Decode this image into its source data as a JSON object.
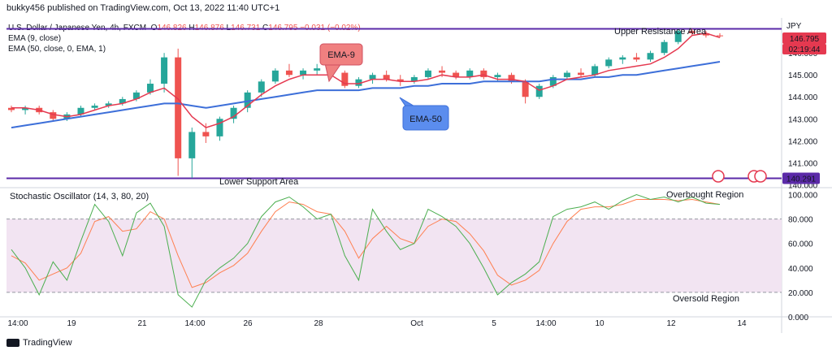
{
  "header": {
    "published": "bukky456 published on TradingView.com, Oct 13, 2022 11:40 UTC+1",
    "symbol": "U.S. Dollar / Japanese Yen, 4h, FXCM",
    "o_label": "O",
    "o_val": "146.826",
    "h_label": "H",
    "h_val": "146.876",
    "l_label": "L",
    "l_val": "146.731",
    "c_label": "C",
    "c_val": "146.795",
    "change": "−0.031 (−0.02%)",
    "ema9": "EMA (9, close)",
    "ema50": "EMA (50, close, 0, EMA, 1)",
    "currency": "JPY"
  },
  "price_badges": {
    "last": "146.795",
    "countdown": "02:19:44",
    "support": "140.291"
  },
  "annotations": {
    "upper": "Upper Resistance Area",
    "lower": "Lower Support Area",
    "ema9_callout": "EMA-9",
    "ema50_callout": "EMA-50",
    "overbought": "Overbought Region",
    "oversold": "Oversold Region"
  },
  "oscillator": {
    "title": "Stochastic Oscillator (14, 3, 80, 20)"
  },
  "footer": {
    "brand": "TradingView"
  },
  "colors": {
    "up": "#26a69a",
    "down": "#ef5350",
    "ema9": "#e53950",
    "ema50": "#3d6fd9",
    "level_line": "#5b2aa8",
    "stoch_k": "#4caf50",
    "stoch_d": "#ff7f50",
    "band": "#f2e4f2"
  },
  "chart_data": [
    {
      "type": "candlestick",
      "ylim": [
        139.9,
        147.6
      ],
      "y_ticks": [
        146.0,
        145.0,
        144.0,
        143.0,
        142.0,
        141.0,
        140.0
      ],
      "x_ticks": [
        "14:00",
        "19",
        "21",
        "14:00",
        "26",
        "28",
        "Oct",
        "5",
        "14:00",
        "10",
        "12",
        "14"
      ],
      "levels": {
        "upper_resistance": 147.1,
        "lower_support": 140.291
      },
      "series": [
        {
          "name": "EMA-9",
          "values": [
            143.5,
            143.5,
            143.4,
            143.2,
            143.1,
            143.2,
            143.4,
            143.6,
            143.7,
            143.9,
            144.2,
            144.4,
            143.9,
            143.1,
            142.6,
            142.8,
            143.1,
            143.6,
            144.1,
            144.5,
            144.8,
            145.0,
            145.0,
            145.0,
            144.6,
            144.6,
            144.8,
            144.8,
            144.7,
            144.7,
            144.8,
            145.0,
            144.9,
            144.9,
            145.0,
            144.8,
            144.8,
            144.7,
            144.3,
            144.5,
            144.8,
            144.9,
            145.0,
            145.2,
            145.3,
            145.4,
            145.5,
            145.8,
            146.2,
            146.8,
            146.9,
            146.7
          ]
        },
        {
          "name": "EMA-50",
          "values": [
            142.6,
            142.7,
            142.8,
            142.9,
            143.0,
            143.1,
            143.2,
            143.3,
            143.4,
            143.5,
            143.6,
            143.7,
            143.7,
            143.6,
            143.5,
            143.6,
            143.7,
            143.8,
            143.9,
            144.0,
            144.1,
            144.2,
            144.3,
            144.3,
            144.3,
            144.3,
            144.4,
            144.4,
            144.4,
            144.5,
            144.5,
            144.6,
            144.6,
            144.6,
            144.7,
            144.7,
            144.7,
            144.7,
            144.7,
            144.8,
            144.8,
            144.8,
            144.9,
            144.9,
            145.0,
            145.0,
            145.1,
            145.2,
            145.3,
            145.4,
            145.5,
            145.6
          ]
        }
      ],
      "candles": [
        [
          143.5,
          143.6,
          143.3,
          143.4
        ],
        [
          143.4,
          143.6,
          143.2,
          143.5
        ],
        [
          143.5,
          143.6,
          143.2,
          143.3
        ],
        [
          143.3,
          143.4,
          142.9,
          143.0
        ],
        [
          143.0,
          143.3,
          142.9,
          143.2
        ],
        [
          143.2,
          143.6,
          143.1,
          143.5
        ],
        [
          143.5,
          143.7,
          143.4,
          143.6
        ],
        [
          143.6,
          143.8,
          143.5,
          143.7
        ],
        [
          143.7,
          144.0,
          143.6,
          143.9
        ],
        [
          143.9,
          144.3,
          143.8,
          144.2
        ],
        [
          144.2,
          144.8,
          144.1,
          144.6
        ],
        [
          144.6,
          146.0,
          144.2,
          145.8
        ],
        [
          145.8,
          146.2,
          140.4,
          141.2
        ],
        [
          141.2,
          142.6,
          140.3,
          142.4
        ],
        [
          142.4,
          142.8,
          141.9,
          142.2
        ],
        [
          142.2,
          143.1,
          142.0,
          143.0
        ],
        [
          143.0,
          143.6,
          142.8,
          143.5
        ],
        [
          143.5,
          144.3,
          143.3,
          144.2
        ],
        [
          144.2,
          144.8,
          144.0,
          144.7
        ],
        [
          144.7,
          145.3,
          144.6,
          145.2
        ],
        [
          145.2,
          145.5,
          144.9,
          145.0
        ],
        [
          145.0,
          145.3,
          144.8,
          145.2
        ],
        [
          145.2,
          145.5,
          145.0,
          145.3
        ],
        [
          145.3,
          145.4,
          144.9,
          145.1
        ],
        [
          145.1,
          145.2,
          144.4,
          144.5
        ],
        [
          144.5,
          144.9,
          144.4,
          144.8
        ],
        [
          144.8,
          145.1,
          144.6,
          145.0
        ],
        [
          145.0,
          145.2,
          144.7,
          144.8
        ],
        [
          144.8,
          145.0,
          144.5,
          144.7
        ],
        [
          144.7,
          145.0,
          144.6,
          144.9
        ],
        [
          144.9,
          145.3,
          144.8,
          145.2
        ],
        [
          145.2,
          145.4,
          144.9,
          145.1
        ],
        [
          145.1,
          145.2,
          144.8,
          144.9
        ],
        [
          144.9,
          145.3,
          144.8,
          145.2
        ],
        [
          145.2,
          145.3,
          144.8,
          144.9
        ],
        [
          144.9,
          145.1,
          144.7,
          145.0
        ],
        [
          145.0,
          145.1,
          144.6,
          144.7
        ],
        [
          144.7,
          144.8,
          143.7,
          144.0
        ],
        [
          144.0,
          144.6,
          143.9,
          144.5
        ],
        [
          144.5,
          145.0,
          144.4,
          144.9
        ],
        [
          144.9,
          145.2,
          144.8,
          145.1
        ],
        [
          145.1,
          145.3,
          144.9,
          145.0
        ],
        [
          145.0,
          145.5,
          144.9,
          145.4
        ],
        [
          145.4,
          145.8,
          145.3,
          145.7
        ],
        [
          145.7,
          145.9,
          145.5,
          145.8
        ],
        [
          145.8,
          146.0,
          145.6,
          145.7
        ],
        [
          145.7,
          146.1,
          145.6,
          146.0
        ],
        [
          146.0,
          146.6,
          145.9,
          146.5
        ],
        [
          146.5,
          147.1,
          146.4,
          147.0
        ],
        [
          147.0,
          147.1,
          146.8,
          146.9
        ],
        [
          146.9,
          147.0,
          146.7,
          146.8
        ],
        [
          146.8,
          146.9,
          146.7,
          146.795
        ]
      ]
    },
    {
      "type": "line",
      "title": "Stochastic Oscillator (14, 3, 80, 20)",
      "ylim": [
        0,
        105
      ],
      "y_ticks": [
        100.0,
        80.0,
        60.0,
        40.0,
        20.0,
        0.0
      ],
      "bands": {
        "upper": 80,
        "lower": 20
      },
      "series": [
        {
          "name": "%K",
          "values": [
            55,
            40,
            18,
            45,
            30,
            62,
            92,
            78,
            50,
            85,
            93,
            74,
            18,
            8,
            30,
            40,
            48,
            60,
            82,
            94,
            98,
            90,
            80,
            84,
            50,
            30,
            88,
            70,
            55,
            60,
            88,
            82,
            74,
            60,
            40,
            18,
            28,
            35,
            45,
            82,
            88,
            90,
            94,
            88,
            95,
            100,
            96,
            98,
            94,
            98,
            93,
            92
          ]
        },
        {
          "name": "%D",
          "values": [
            50,
            44,
            30,
            35,
            40,
            52,
            78,
            82,
            70,
            72,
            86,
            80,
            50,
            24,
            28,
            36,
            42,
            52,
            70,
            86,
            94,
            92,
            86,
            84,
            70,
            48,
            64,
            74,
            64,
            60,
            74,
            80,
            78,
            68,
            54,
            34,
            26,
            30,
            38,
            60,
            78,
            88,
            90,
            90,
            92,
            96,
            96,
            96,
            95,
            96,
            94,
            92
          ]
        }
      ]
    }
  ]
}
